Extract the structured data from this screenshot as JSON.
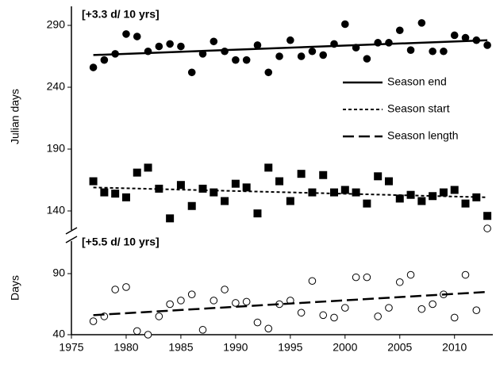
{
  "chart_data": [
    {
      "type": "scatter",
      "y_label": "Julian days",
      "annotation": "[+3.3 d/ 10 yrs]",
      "legend": "upper right",
      "x": [
        1977,
        1978,
        1979,
        1980,
        1981,
        1982,
        1983,
        1984,
        1985,
        1986,
        1987,
        1988,
        1989,
        1990,
        1991,
        1992,
        1993,
        1994,
        1995,
        1996,
        1997,
        1998,
        1999,
        2000,
        2001,
        2002,
        2003,
        2004,
        2005,
        2006,
        2007,
        2008,
        2009,
        2010,
        2011,
        2012,
        2013
      ],
      "xlim": [
        1975,
        2013.5
      ],
      "ylim": [
        128,
        305
      ],
      "yticks": [
        140,
        190,
        240,
        290
      ],
      "series": [
        {
          "name": "Season end",
          "color": "#000000",
          "marker": "circle",
          "filled": true,
          "trend_style": "solid",
          "trend_values": [
            266,
            278
          ],
          "values": [
            256,
            262,
            267,
            283,
            281,
            269,
            273,
            275,
            273,
            252,
            267,
            277,
            269,
            262,
            262,
            274,
            252,
            265,
            278,
            265,
            269,
            266,
            275,
            291,
            272,
            263,
            276,
            276,
            286,
            270,
            292,
            269,
            269,
            282,
            280,
            278,
            274
          ]
        },
        {
          "name": "Season start",
          "color": "#000000",
          "marker": "square",
          "filled": true,
          "trend_style": "dotted",
          "trend_values": [
            159,
            151
          ],
          "values": [
            164,
            155,
            154,
            151,
            171,
            175,
            158,
            134,
            161,
            144,
            158,
            155,
            148,
            162,
            159,
            138,
            175,
            164,
            148,
            170,
            155,
            169,
            155,
            157,
            155,
            146,
            168,
            164,
            150,
            153,
            148,
            152,
            155,
            157,
            146,
            151,
            136
          ]
        }
      ]
    },
    {
      "type": "scatter",
      "y_label": "Days",
      "annotation": "[+5.5 d/ 10 yrs]",
      "x": [
        1977,
        1978,
        1979,
        1980,
        1981,
        1982,
        1983,
        1984,
        1985,
        1986,
        1987,
        1988,
        1989,
        1990,
        1991,
        1992,
        1993,
        1994,
        1995,
        1996,
        1997,
        1998,
        1999,
        2000,
        2001,
        2002,
        2003,
        2004,
        2005,
        2006,
        2007,
        2008,
        2009,
        2010,
        2011,
        2012,
        2013
      ],
      "xlim": [
        1975,
        2013.5
      ],
      "ylim": [
        40,
        130
      ],
      "yticks": [
        40,
        90
      ],
      "xticks": [
        1975,
        1980,
        1985,
        1990,
        1995,
        2000,
        2005,
        2010
      ],
      "series": [
        {
          "name": "Season length",
          "color": "#000000",
          "marker": "circle",
          "filled": false,
          "trend_style": "dashed",
          "trend_values": [
            56,
            75
          ],
          "values": [
            51,
            55,
            77,
            79,
            43,
            40,
            55,
            65,
            68,
            73,
            44,
            68,
            77,
            66,
            67,
            50,
            45,
            65,
            68,
            58,
            84,
            56,
            54,
            62,
            87,
            87,
            55,
            62,
            83,
            89,
            61,
            65,
            73,
            54,
            89,
            60,
            127
          ]
        }
      ]
    }
  ]
}
